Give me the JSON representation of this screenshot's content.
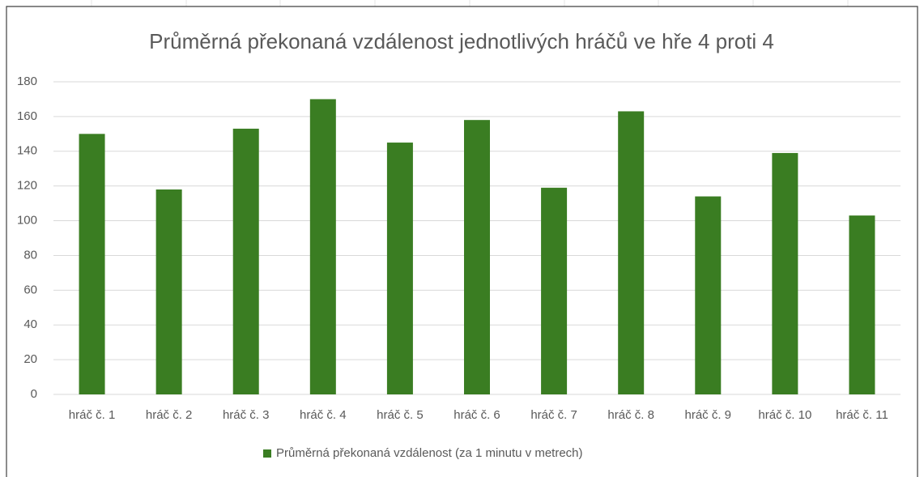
{
  "chart_data": {
    "type": "bar",
    "title": "Průměrná překonaná vzdálenost jednotlivých hráčů ve hře 4 proti 4",
    "categories": [
      "hráč č. 1",
      "hráč č. 2",
      "hráč č. 3",
      "hráč č. 4",
      "hráč č. 5",
      "hráč č. 6",
      "hráč č. 7",
      "hráč č. 8",
      "hráč č. 9",
      "hráč č. 10",
      "hráč č. 11"
    ],
    "series": [
      {
        "name": "Průměrná překonaná vzdálenost (za 1 minutu v metrech)",
        "color": "#3a7d22",
        "values": [
          150,
          118,
          153,
          170,
          145,
          158,
          119,
          163,
          114,
          139,
          103
        ]
      }
    ],
    "ylim": [
      0,
      180
    ],
    "yticks": [
      0,
      20,
      40,
      60,
      80,
      100,
      120,
      140,
      160,
      180
    ],
    "grid": true,
    "legend": "bottom"
  }
}
